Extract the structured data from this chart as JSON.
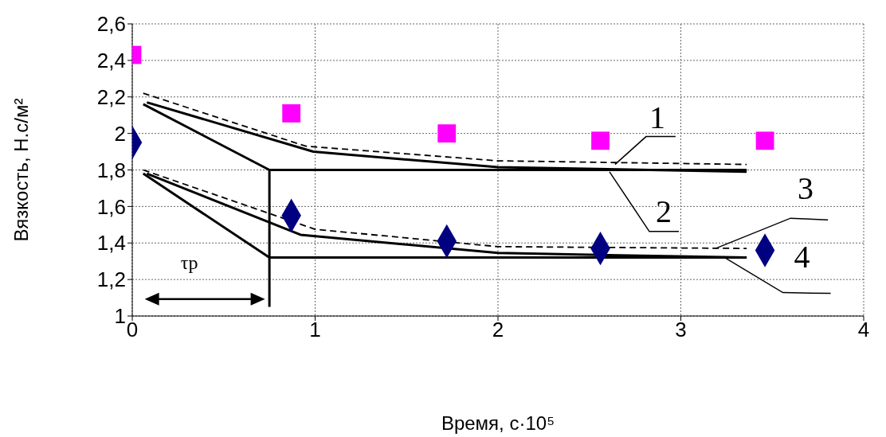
{
  "chart_data": {
    "type": "line",
    "xlabel": "Время, с·10⁵",
    "ylabel": "Вязкость, Н.с/м²",
    "xlim": [
      0,
      4
    ],
    "xticks": [
      0,
      1,
      2,
      3,
      4
    ],
    "ylim": [
      1,
      2.6
    ],
    "yticks": [
      {
        "value": 1,
        "label": "1"
      },
      {
        "value": 1.2,
        "label": "1,2"
      },
      {
        "value": 1.4,
        "label": "1,4"
      },
      {
        "value": 1.6,
        "label": "1,6"
      },
      {
        "value": 1.8,
        "label": "1,8"
      },
      {
        "value": 2,
        "label": "2"
      },
      {
        "value": 2.2,
        "label": "2,2"
      },
      {
        "value": 2.4,
        "label": "2,4"
      },
      {
        "value": 2.6,
        "label": "2,6"
      }
    ],
    "grid": true,
    "legend": false,
    "series": [
      {
        "type": "scatter",
        "color": "#ff00ff",
        "marker": "square",
        "x": [
          0,
          0.87,
          1.72,
          2.56,
          3.46
        ],
        "values": [
          2.43,
          2.11,
          2.0,
          1.96,
          1.96
        ]
      },
      {
        "type": "scatter",
        "color": "#000080",
        "marker": "diamond",
        "x": [
          0,
          0.87,
          1.72,
          2.56,
          3.46
        ],
        "values": [
          1.95,
          1.55,
          1.41,
          1.37,
          1.36
        ]
      },
      {
        "color": "#000000",
        "line_style": "dashed",
        "marker": "none",
        "x": [
          0.06,
          0.95,
          2,
          3.36
        ],
        "values": [
          2.22,
          1.93,
          1.85,
          1.83
        ]
      },
      {
        "color": "#000000",
        "line_style": "solid",
        "marker": "none",
        "x": [
          0.08,
          0.99,
          2,
          3.36
        ],
        "values": [
          2.17,
          1.9,
          1.815,
          1.79
        ]
      },
      {
        "color": "#000000",
        "line_style": "dashed",
        "marker": "none",
        "x": [
          0.06,
          1,
          2,
          3.36
        ],
        "values": [
          1.8,
          1.475,
          1.38,
          1.37
        ]
      },
      {
        "color": "#000000",
        "line_style": "solid",
        "marker": "none",
        "x": [
          0.08,
          0.92,
          2,
          3.36
        ],
        "values": [
          1.78,
          1.445,
          1.345,
          1.32
        ]
      },
      {
        "color": "#000000",
        "line_style": "solid",
        "marker": "none",
        "x": [
          0.06,
          0.75,
          3.36
        ],
        "values": [
          2.16,
          1.8,
          1.8
        ]
      },
      {
        "color": "#000000",
        "line_style": "solid",
        "marker": "none",
        "x": [
          0.06,
          0.75,
          3.36
        ],
        "values": [
          1.78,
          1.32,
          1.32
        ]
      },
      {
        "color": "#000000",
        "line_style": "solid",
        "marker": "none",
        "x": [
          0.75,
          0.75
        ],
        "values": [
          1.8,
          1.05
        ]
      }
    ],
    "annotations": [
      {
        "text": "1",
        "x": 2.64,
        "y": 1.83
      },
      {
        "text": "2",
        "x": 2.61,
        "y": 1.79
      },
      {
        "text": "3",
        "x": 3.19,
        "y": 1.37
      },
      {
        "text": "4",
        "x": 3.24,
        "y": 1.32
      },
      "τр"
    ]
  }
}
